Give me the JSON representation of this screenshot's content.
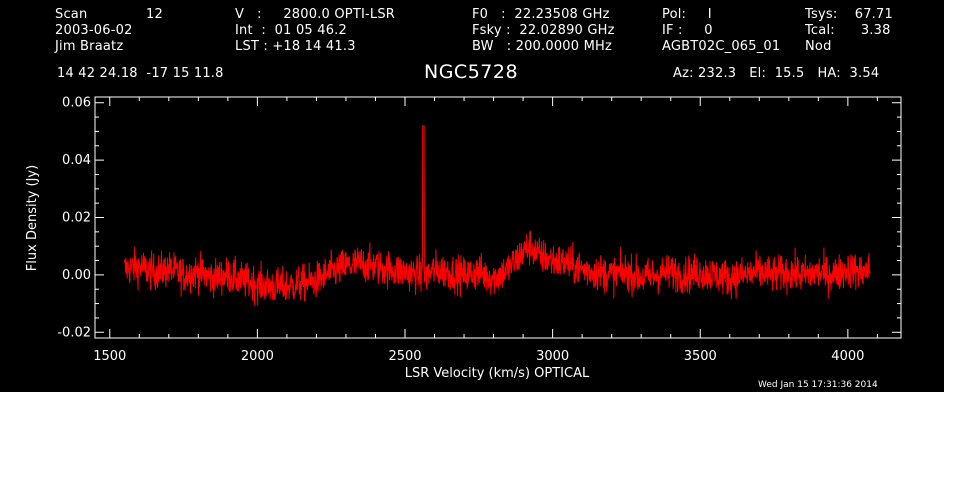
{
  "header": {
    "scan_label": "Scan",
    "scan_value": "12",
    "date": "2003-06-02",
    "observer": "Jim Braatz",
    "v_line": "V   :     2800.0 OPTI-LSR",
    "int_line": "Int  :  01 05 46.2",
    "lst_line": "LST : +18 14 41.3",
    "f0_line": "F0   :  22.23508 GHz",
    "fsky_line": "Fsky :  22.02890 GHz",
    "bw_line": "BW   : 200.0000 MHz",
    "pol_line": "Pol:     I",
    "if_line": "IF :     0",
    "project": "AGBT02C_065_01",
    "tsys_line": "Tsys:    67.71",
    "tcal_line": "Tcal:      3.38",
    "mode": "Nod",
    "coords": "14 42 24.18  -17 15 11.8",
    "object": "NGC5728",
    "azelha": "Az: 232.3   El:  15.5   HA:  3.54",
    "timestamp": "Wed Jan 15 17:31:36 2014"
  },
  "chart_data": {
    "type": "line",
    "xlabel": "LSR Velocity (km/s) OPTICAL",
    "ylabel": "Flux Density (Jy)",
    "xlim": [
      1450,
      4180
    ],
    "ylim": [
      -0.022,
      0.062
    ],
    "xticks": [
      1500,
      2000,
      2500,
      3000,
      3500,
      4000
    ],
    "xtick_labels": [
      "1500",
      "2000",
      "2500",
      "3000",
      "3500",
      "4000"
    ],
    "yticks": [
      -0.02,
      0.0,
      0.02,
      0.04,
      0.06
    ],
    "ytick_labels": [
      "-0.02",
      "0.00",
      "0.02",
      "0.04",
      "0.06"
    ],
    "grid": false,
    "series": [
      {
        "color": "#ff0000",
        "x": [
          1550,
          1600,
          1650,
          1700,
          1750,
          1800,
          1850,
          1900,
          1950,
          2000,
          2050,
          2100,
          2150,
          2200,
          2250,
          2300,
          2350,
          2400,
          2450,
          2500,
          2550,
          2562,
          2575,
          2600,
          2650,
          2700,
          2750,
          2800,
          2850,
          2900,
          2925,
          2950,
          3000,
          3050,
          3100,
          3150,
          3200,
          3250,
          3300,
          3350,
          3400,
          3450,
          3500,
          3550,
          3600,
          3650,
          3700,
          3750,
          3800,
          3850,
          3900,
          3950,
          4000,
          4050,
          4075
        ],
        "y": [
          0.002,
          0.003,
          0.001,
          0.002,
          0.0,
          0.001,
          -0.001,
          0.0,
          -0.002,
          -0.003,
          -0.004,
          -0.004,
          -0.003,
          -0.002,
          0.001,
          0.003,
          0.004,
          0.003,
          0.002,
          0.001,
          0.0,
          0.052,
          0.0,
          0.002,
          0.001,
          0.0,
          0.001,
          -0.001,
          0.002,
          0.008,
          0.01,
          0.007,
          0.005,
          0.004,
          0.002,
          0.001,
          0.0,
          0.001,
          -0.001,
          0.0,
          0.001,
          0.0,
          0.001,
          0.0,
          -0.001,
          0.0,
          0.001,
          0.0,
          0.001,
          0.0,
          0.001,
          0.0,
          0.002,
          0.001,
          0.002
        ]
      }
    ]
  }
}
